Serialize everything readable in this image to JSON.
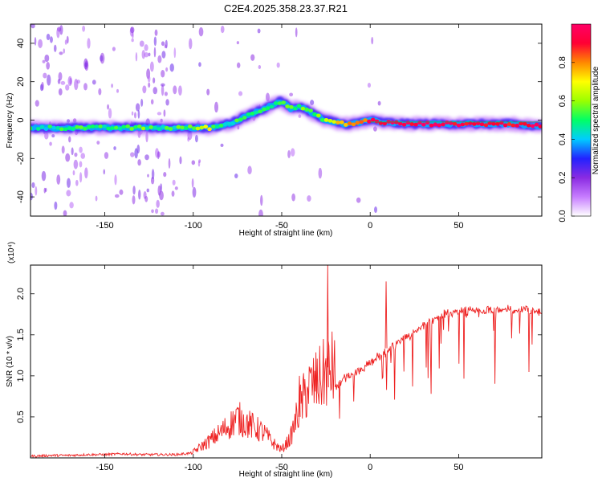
{
  "page_title": "C2E4.2025.358.23.37.R21",
  "colorbar": {
    "label": "Normalized spectral amplitude",
    "ticks": [
      "0.0",
      "0.2",
      "0.4",
      "0.6",
      "0.8"
    ],
    "range": [
      0,
      1
    ],
    "stops": [
      "#ffffff",
      "#c77dff",
      "#8a2be2",
      "#2222ff",
      "#00ccff",
      "#00ff66",
      "#9aff00",
      "#ffff00",
      "#ff8800",
      "#ff0033",
      "#ff0066"
    ]
  },
  "chart_data": [
    {
      "type": "heatmap",
      "title": "C2E4.2025.358.23.37.R21",
      "xlabel": "Height of straight line (km)",
      "ylabel": "Frequency (Hz)",
      "xlim": [
        -192,
        97
      ],
      "ylim": [
        -50,
        50
      ],
      "x_ticks": [
        -150,
        -100,
        -50,
        0,
        50
      ],
      "x_tick_labels": [
        "-150",
        "-100",
        "-50",
        "0",
        "50"
      ],
      "y_ticks": [
        40,
        20,
        0,
        -20,
        -40
      ],
      "y_tick_labels": [
        "40",
        "20",
        "0",
        "-20",
        "-40"
      ],
      "ridge": {
        "x": [
          -192,
          -170,
          -150,
          -130,
          -120,
          -110,
          -100,
          -90,
          -85,
          -80,
          -75,
          -70,
          -65,
          -60,
          -55,
          -50,
          -45,
          -40,
          -35,
          -30,
          -25,
          -20,
          -15,
          -10,
          -5,
          0,
          5,
          20,
          40,
          60,
          80,
          90,
          97
        ],
        "freq_hz": [
          -4,
          -4,
          -4,
          -4,
          -4,
          -4,
          -4,
          -4,
          -3,
          -2,
          0,
          2,
          4,
          6,
          8,
          10,
          6,
          7,
          5,
          2,
          0,
          -1,
          -2,
          -2,
          -1,
          0,
          -1,
          -2,
          -2,
          -2,
          -2,
          -3,
          -3
        ],
        "amplitude": [
          0.45,
          0.5,
          0.5,
          0.55,
          0.5,
          0.5,
          0.6,
          0.65,
          0.5,
          0.45,
          0.5,
          0.5,
          0.5,
          0.55,
          0.45,
          0.6,
          0.5,
          0.55,
          0.5,
          0.55,
          0.6,
          0.7,
          0.7,
          0.8,
          0.8,
          0.95,
          0.95,
          0.95,
          0.95,
          0.95,
          0.9,
          0.95,
          0.95
        ]
      },
      "reference_line_hz": -1
    },
    {
      "type": "line",
      "xlabel": "Height of straight line (km)",
      "ylabel": "SNR (10 * v/v)",
      "y_multiplier": "(x10⁴)",
      "xlim": [
        -192,
        97
      ],
      "ylim": [
        0,
        2.35
      ],
      "x_ticks": [
        -150,
        -100,
        -50,
        0,
        50
      ],
      "x_tick_labels": [
        "-150",
        "-100",
        "-50",
        "0",
        "50"
      ],
      "y_ticks": [
        0.5,
        1.0,
        1.5,
        2.0
      ],
      "y_tick_labels": [
        "0.5",
        "1.0",
        "1.5",
        "2.0"
      ],
      "series": [
        {
          "name": "SNR",
          "color": "#ee2222",
          "x": [
            -192,
            -180,
            -170,
            -160,
            -150,
            -140,
            -130,
            -120,
            -110,
            -100,
            -95,
            -90,
            -85,
            -80,
            -75,
            -70,
            -65,
            -60,
            -55,
            -50,
            -45,
            -40,
            -35,
            -30,
            -25,
            -20,
            -15,
            -10,
            -5,
            0,
            10,
            20,
            30,
            40,
            50,
            60,
            70,
            80,
            90,
            97
          ],
          "y": [
            0.02,
            0.03,
            0.03,
            0.04,
            0.04,
            0.05,
            0.04,
            0.04,
            0.04,
            0.06,
            0.12,
            0.18,
            0.25,
            0.32,
            0.4,
            0.35,
            0.3,
            0.25,
            0.15,
            0.08,
            0.2,
            0.5,
            0.7,
            0.75,
            0.85,
            0.9,
            1.0,
            1.05,
            1.1,
            1.2,
            1.35,
            1.5,
            1.65,
            1.78,
            1.82,
            1.84,
            1.85,
            1.85,
            1.85,
            1.82
          ]
        }
      ],
      "spikes": [
        {
          "x": -24,
          "y": 2.35
        },
        {
          "x": 9,
          "y": 2.15
        },
        {
          "x": -40,
          "y": 1.0
        }
      ]
    }
  ]
}
